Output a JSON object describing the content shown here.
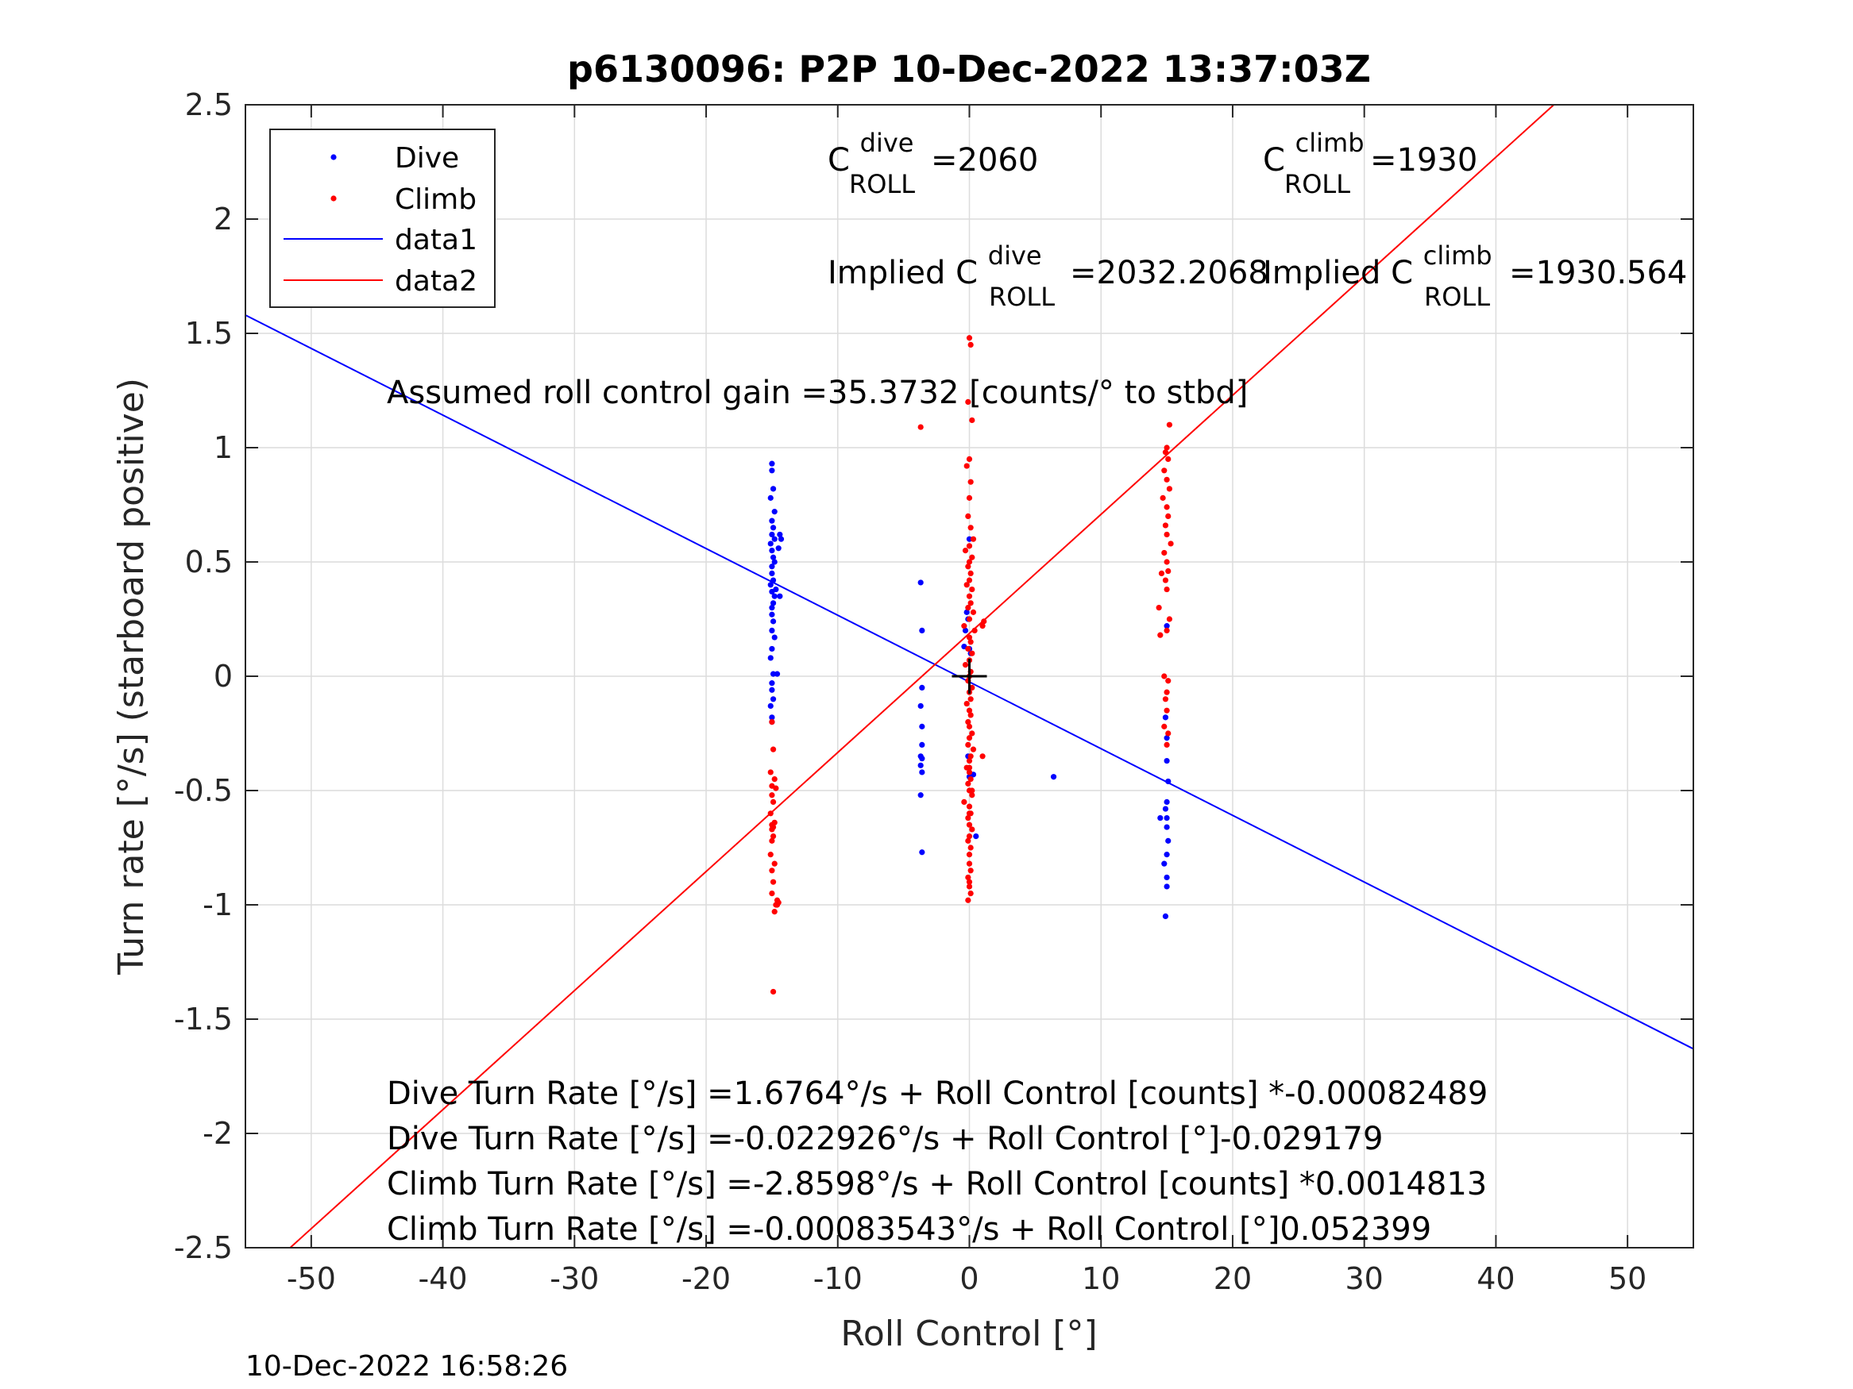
{
  "chart_data": {
    "type": "scatter",
    "title": "p6130096: P2P 10-Dec-2022 13:37:03Z",
    "xlabel": "Roll Control [°]",
    "ylabel": "Turn rate [°/s] (starboard positive)",
    "xlim": [
      -55,
      55
    ],
    "ylim": [
      -2.5,
      2.5
    ],
    "x_ticks": [
      -50,
      -40,
      -30,
      -20,
      -10,
      0,
      10,
      20,
      30,
      40,
      50
    ],
    "x_tick_labels": [
      "-50",
      "-40",
      "-30",
      "-20",
      "-10",
      "0",
      "10",
      "20",
      "30",
      "40",
      "50"
    ],
    "y_ticks": [
      -2.5,
      -2,
      -1.5,
      -1,
      -0.5,
      0,
      0.5,
      1,
      1.5,
      2,
      2.5
    ],
    "y_tick_labels": [
      "-2.5",
      "-2",
      "-1.5",
      "-1",
      "-0.5",
      "0",
      "0.5",
      "1",
      "1.5",
      "2",
      "2.5"
    ],
    "grid": true,
    "legend_position": "top-left",
    "legend": [
      "Dive",
      "Climb",
      "data1",
      "data2"
    ],
    "colors": {
      "dive": "#0000ff",
      "climb": "#ff0000",
      "marker": "#000000"
    },
    "series": [
      {
        "name": "Dive",
        "kind": "points",
        "x": [
          -15.0,
          -15.0,
          -14.9,
          -15.1,
          -14.8,
          -15.0,
          -14.9,
          -15.0,
          -14.8,
          -15.1,
          -15.0,
          -14.9,
          -14.8,
          -15.0,
          -15.0,
          -14.9,
          -15.1,
          -15.0,
          -14.8,
          -14.9,
          -15.0,
          -15.0,
          -14.9,
          -15.0,
          -14.8,
          -15.0,
          -15.1,
          -14.7,
          -14.4,
          -14.5,
          -14.3,
          -14.4,
          -14.9,
          -15.0,
          -14.9,
          -15.0,
          -14.6,
          -15.0,
          -15.1,
          -15.0,
          -3.7,
          -3.6,
          -3.6,
          -3.7,
          -3.6,
          -3.6,
          -3.7,
          -3.6,
          -3.7,
          -3.6,
          -3.6,
          -3.7,
          0.0,
          -0.2,
          -0.1,
          -0.3,
          0.0,
          0.1,
          -0.4,
          -0.1,
          0.0,
          0.3,
          0.5,
          6.4,
          14.5,
          14.9,
          15.0,
          15.0,
          15.1,
          15.0,
          14.9,
          15.0,
          15.0,
          15.1,
          15.0,
          14.8,
          15.0,
          15.0,
          14.9,
          15.0
        ],
        "y": [
          0.93,
          0.9,
          0.82,
          0.78,
          0.72,
          0.68,
          0.65,
          0.62,
          0.6,
          0.58,
          0.55,
          0.52,
          0.5,
          0.48,
          0.45,
          0.42,
          0.4,
          0.37,
          0.35,
          0.32,
          0.3,
          0.27,
          0.24,
          0.2,
          0.17,
          0.12,
          0.08,
          0.38,
          0.62,
          0.56,
          0.6,
          0.35,
          0.01,
          -0.03,
          -0.1,
          -0.18,
          0.01,
          -0.06,
          -0.13,
          -0.2,
          0.41,
          0.2,
          -0.05,
          -0.13,
          -0.22,
          -0.3,
          -0.35,
          -0.42,
          -0.52,
          -0.77,
          -0.36,
          -0.39,
          0.6,
          0.28,
          0.25,
          0.2,
          0.12,
          0.1,
          0.13,
          -0.35,
          -0.44,
          -0.43,
          -0.7,
          -0.44,
          -0.62,
          -0.18,
          -0.27,
          -0.37,
          -0.46,
          -0.55,
          -0.58,
          -0.62,
          -0.66,
          -0.72,
          -0.78,
          -0.82,
          -0.88,
          -0.92,
          -1.05,
          0.22
        ],
        "color": "#0000ff"
      },
      {
        "name": "Climb",
        "kind": "points",
        "x": [
          -15.0,
          -14.9,
          -15.1,
          -14.8,
          -15.0,
          -15.0,
          -14.9,
          -15.1,
          -14.8,
          -15.0,
          -14.9,
          -15.0,
          -15.1,
          -14.8,
          -15.0,
          -14.9,
          -15.0,
          -14.6,
          -14.7,
          -14.8,
          -14.9,
          -15.0,
          -14.5,
          -14.6,
          -14.9,
          -14.7,
          -3.7,
          0.0,
          0.1,
          -0.1,
          0.2,
          0.0,
          -0.2,
          0.1,
          0.0,
          -0.1,
          0.1,
          0.3,
          0.0,
          -0.3,
          0.2,
          0.0,
          -0.1,
          0.1,
          0.0,
          -0.2,
          0.2,
          0.0,
          0.1,
          -0.1,
          0.3,
          0.0,
          -0.4,
          0.4,
          0.0,
          0.1,
          -0.1,
          0.2,
          0.0,
          -0.3,
          0.1,
          0.0,
          -0.1,
          0.2,
          0.0,
          0.1,
          -0.2,
          0.0,
          0.1,
          -0.1,
          0.0,
          0.2,
          0.0,
          -0.1,
          0.3,
          0.1,
          0.0,
          -0.2,
          0.0,
          0.1,
          -0.1,
          0.0,
          0.2,
          -0.4,
          0.0,
          0.1,
          -0.1,
          0.0,
          0.2,
          0.0,
          -0.1,
          0.1,
          0.0,
          0.0,
          0.1,
          -0.1,
          0.0,
          0.0,
          0.1,
          -0.1,
          0.0,
          0.2,
          0.0,
          1.0,
          1.1,
          1.0,
          15.2,
          15.0,
          14.9,
          15.1,
          14.8,
          15.0,
          15.2,
          14.7,
          15.0,
          15.1,
          14.9,
          15.0,
          15.3,
          14.8,
          15.0,
          15.1,
          14.9,
          15.0,
          14.6,
          14.4,
          14.5,
          15.2,
          15.0,
          14.8,
          15.1,
          15.0,
          14.9,
          15.0,
          14.8,
          15.1,
          15.0
        ],
        "y": [
          -0.2,
          -0.32,
          -0.42,
          -0.45,
          -0.48,
          -0.52,
          -0.55,
          -0.6,
          -0.64,
          -0.67,
          -0.7,
          -0.72,
          -0.78,
          -0.82,
          -0.85,
          -0.9,
          -0.95,
          -0.98,
          -1.0,
          -1.03,
          -0.66,
          -0.65,
          -0.99,
          -1.0,
          -1.38,
          -0.49,
          1.09,
          1.48,
          1.45,
          1.2,
          1.12,
          0.95,
          0.92,
          0.85,
          0.78,
          0.7,
          0.65,
          0.6,
          0.57,
          0.55,
          0.52,
          0.5,
          0.48,
          0.45,
          0.42,
          0.4,
          0.38,
          0.35,
          0.32,
          0.3,
          0.28,
          0.25,
          0.22,
          0.2,
          0.17,
          0.15,
          0.12,
          0.1,
          0.07,
          0.05,
          0.02,
          0.0,
          -0.02,
          -0.05,
          -0.07,
          -0.1,
          -0.12,
          -0.15,
          -0.17,
          -0.2,
          -0.22,
          -0.25,
          -0.27,
          -0.3,
          -0.32,
          -0.35,
          -0.37,
          -0.4,
          -0.42,
          -0.45,
          -0.47,
          -0.5,
          -0.52,
          -0.55,
          -0.57,
          -0.6,
          -0.62,
          -0.65,
          -0.67,
          -0.7,
          -0.72,
          -0.75,
          -0.78,
          -0.82,
          -0.85,
          -0.88,
          -0.9,
          -0.92,
          -0.95,
          -0.98,
          -0.6,
          -0.5,
          -0.4,
          0.22,
          0.24,
          -0.35,
          1.1,
          1.0,
          0.98,
          0.95,
          0.9,
          0.86,
          0.82,
          0.78,
          0.74,
          0.7,
          0.66,
          0.62,
          0.58,
          0.54,
          0.5,
          0.46,
          0.42,
          0.38,
          0.45,
          0.3,
          0.18,
          0.25,
          0.2,
          0.0,
          -0.02,
          -0.07,
          -0.1,
          -0.15,
          -0.22,
          -0.25,
          -0.3
        ],
        "color": "#ff0000"
      },
      {
        "name": "data1",
        "kind": "line",
        "x": [
          -55,
          55
        ],
        "y": [
          1.58,
          -1.63
        ],
        "color": "#0000ff"
      },
      {
        "name": "data2",
        "kind": "line",
        "x": [
          -51.6,
          44.4
        ],
        "y": [
          -2.5,
          2.5
        ],
        "color": "#ff0000"
      }
    ],
    "crosshair_marker": {
      "x": 0,
      "y": 0,
      "color": "#000000"
    },
    "annotations": {
      "c_dive": {
        "base": "C",
        "sup": "dive",
        "sub": "ROLL",
        "value": "=2060"
      },
      "c_climb": {
        "base": "C",
        "sup": "climb",
        "sub": "ROLL",
        "value": "=1930"
      },
      "implied_dive": {
        "base": "Implied C",
        "sup": "dive",
        "sub": "ROLL",
        "value": "=2032.2068"
      },
      "implied_climb": {
        "base": "Implied C",
        "sup": "climb",
        "sub": "ROLL",
        "value": "=1930.564"
      },
      "gain": "Assumed roll control gain =35.3732 [counts/° to stbd]",
      "eq1": "Dive Turn Rate [°/s] =1.6764°/s + Roll Control [counts] *-0.00082489",
      "eq2": "Dive Turn Rate [°/s] =-0.022926°/s + Roll Control [°]-0.029179",
      "eq3": "Climb Turn Rate [°/s] =-2.8598°/s + Roll Control [counts] *0.0014813",
      "eq4": "Climb Turn Rate [°/s] =-0.00083543°/s + Roll Control [°]0.052399"
    }
  },
  "timestamp": "10-Dec-2022 16:58:26"
}
